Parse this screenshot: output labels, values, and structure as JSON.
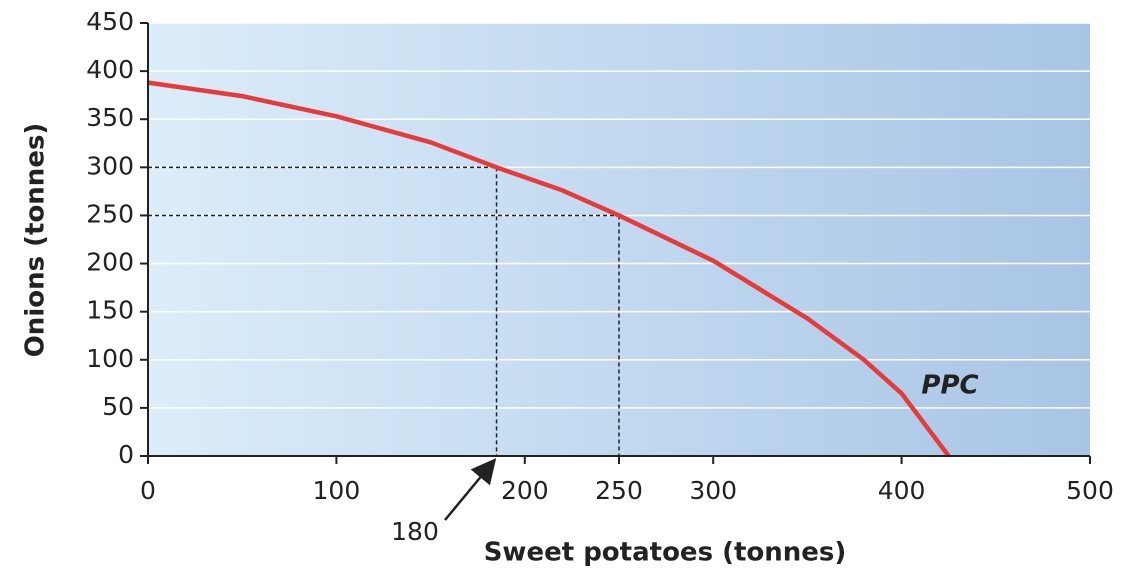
{
  "chart_data": {
    "type": "line",
    "xlabel": "Sweet potatoes (tonnes)",
    "ylabel": "Onions (tonnes)",
    "series": [
      {
        "name": "PPC",
        "color": "#e63b3b",
        "x": [
          0,
          50,
          100,
          150,
          185,
          220,
          250,
          300,
          350,
          380,
          400,
          425
        ],
        "values": [
          388,
          374,
          353,
          326,
          300,
          276,
          250,
          203,
          143,
          100,
          65,
          0
        ]
      }
    ],
    "guides": [
      {
        "x": 185,
        "y": 300
      },
      {
        "x": 250,
        "y": 250
      }
    ],
    "annotation": "180",
    "xlim": [
      0,
      500
    ],
    "xticks": [
      0,
      100,
      200,
      250,
      300,
      400,
      500
    ],
    "ylim": [
      0,
      450
    ],
    "yticks": [
      0,
      50,
      100,
      150,
      200,
      250,
      300,
      350,
      400,
      450
    ],
    "grid": true
  }
}
